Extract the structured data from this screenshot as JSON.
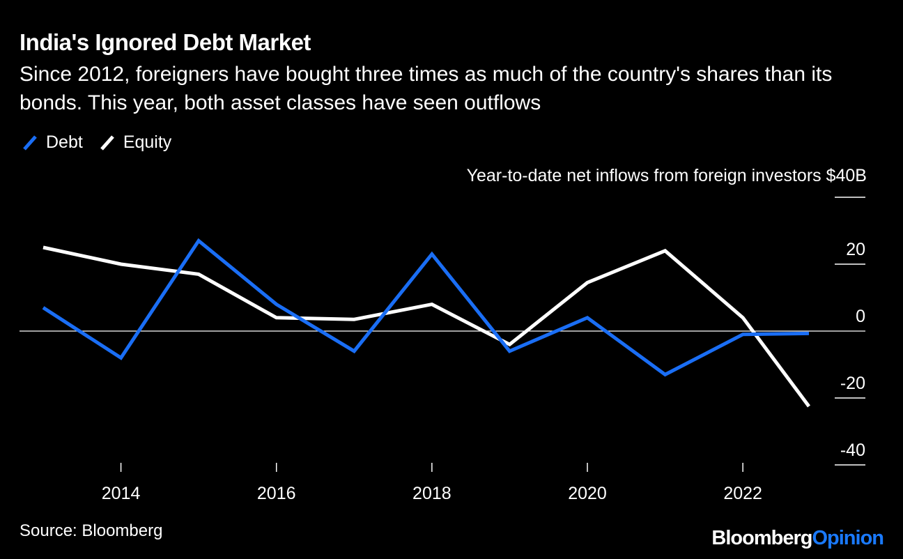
{
  "header": {
    "title": "India's Ignored Debt Market",
    "subtitle": "Since 2012, foreigners have bought three times as much of the country's shares than its bonds. This year, both asset classes have seen outflows"
  },
  "footer": {
    "source": "Source: Bloomberg",
    "brand_part1": "Bloomberg",
    "brand_part2": "Opinion"
  },
  "chart_data": {
    "type": "line",
    "title": "India's Ignored Debt Market",
    "ylabel": "Year-to-date net inflows from foreign investors $40B",
    "unit_label": "Year-to-date net inflows from foreign investors $40B",
    "ylim": [
      -40,
      40
    ],
    "yticks": [
      {
        "value": 40,
        "label": ""
      },
      {
        "value": 20,
        "label": "20"
      },
      {
        "value": 0,
        "label": "0"
      },
      {
        "value": -20,
        "label": "-20"
      },
      {
        "value": -40,
        "label": "-40"
      }
    ],
    "xlim": [
      2013,
      2022.85
    ],
    "xticks": [
      {
        "value": 2014,
        "label": "2014"
      },
      {
        "value": 2016,
        "label": "2016"
      },
      {
        "value": 2018,
        "label": "2018"
      },
      {
        "value": 2020,
        "label": "2020"
      },
      {
        "value": 2022,
        "label": "2022"
      }
    ],
    "x": [
      2013,
      2014,
      2015,
      2016,
      2017,
      2018,
      2019,
      2020,
      2021,
      2022,
      2022.85
    ],
    "series": [
      {
        "name": "Debt",
        "color": "#1a6ef5",
        "values": [
          7,
          -8,
          27,
          8,
          -6,
          23,
          -6,
          4,
          -13,
          -1,
          -0.7
        ]
      },
      {
        "name": "Equity",
        "color": "#ffffff",
        "values": [
          25,
          20,
          17,
          4,
          3.5,
          8,
          -4,
          14.5,
          24,
          4,
          -22.5
        ]
      }
    ],
    "legend": "top-left",
    "grid": false
  }
}
